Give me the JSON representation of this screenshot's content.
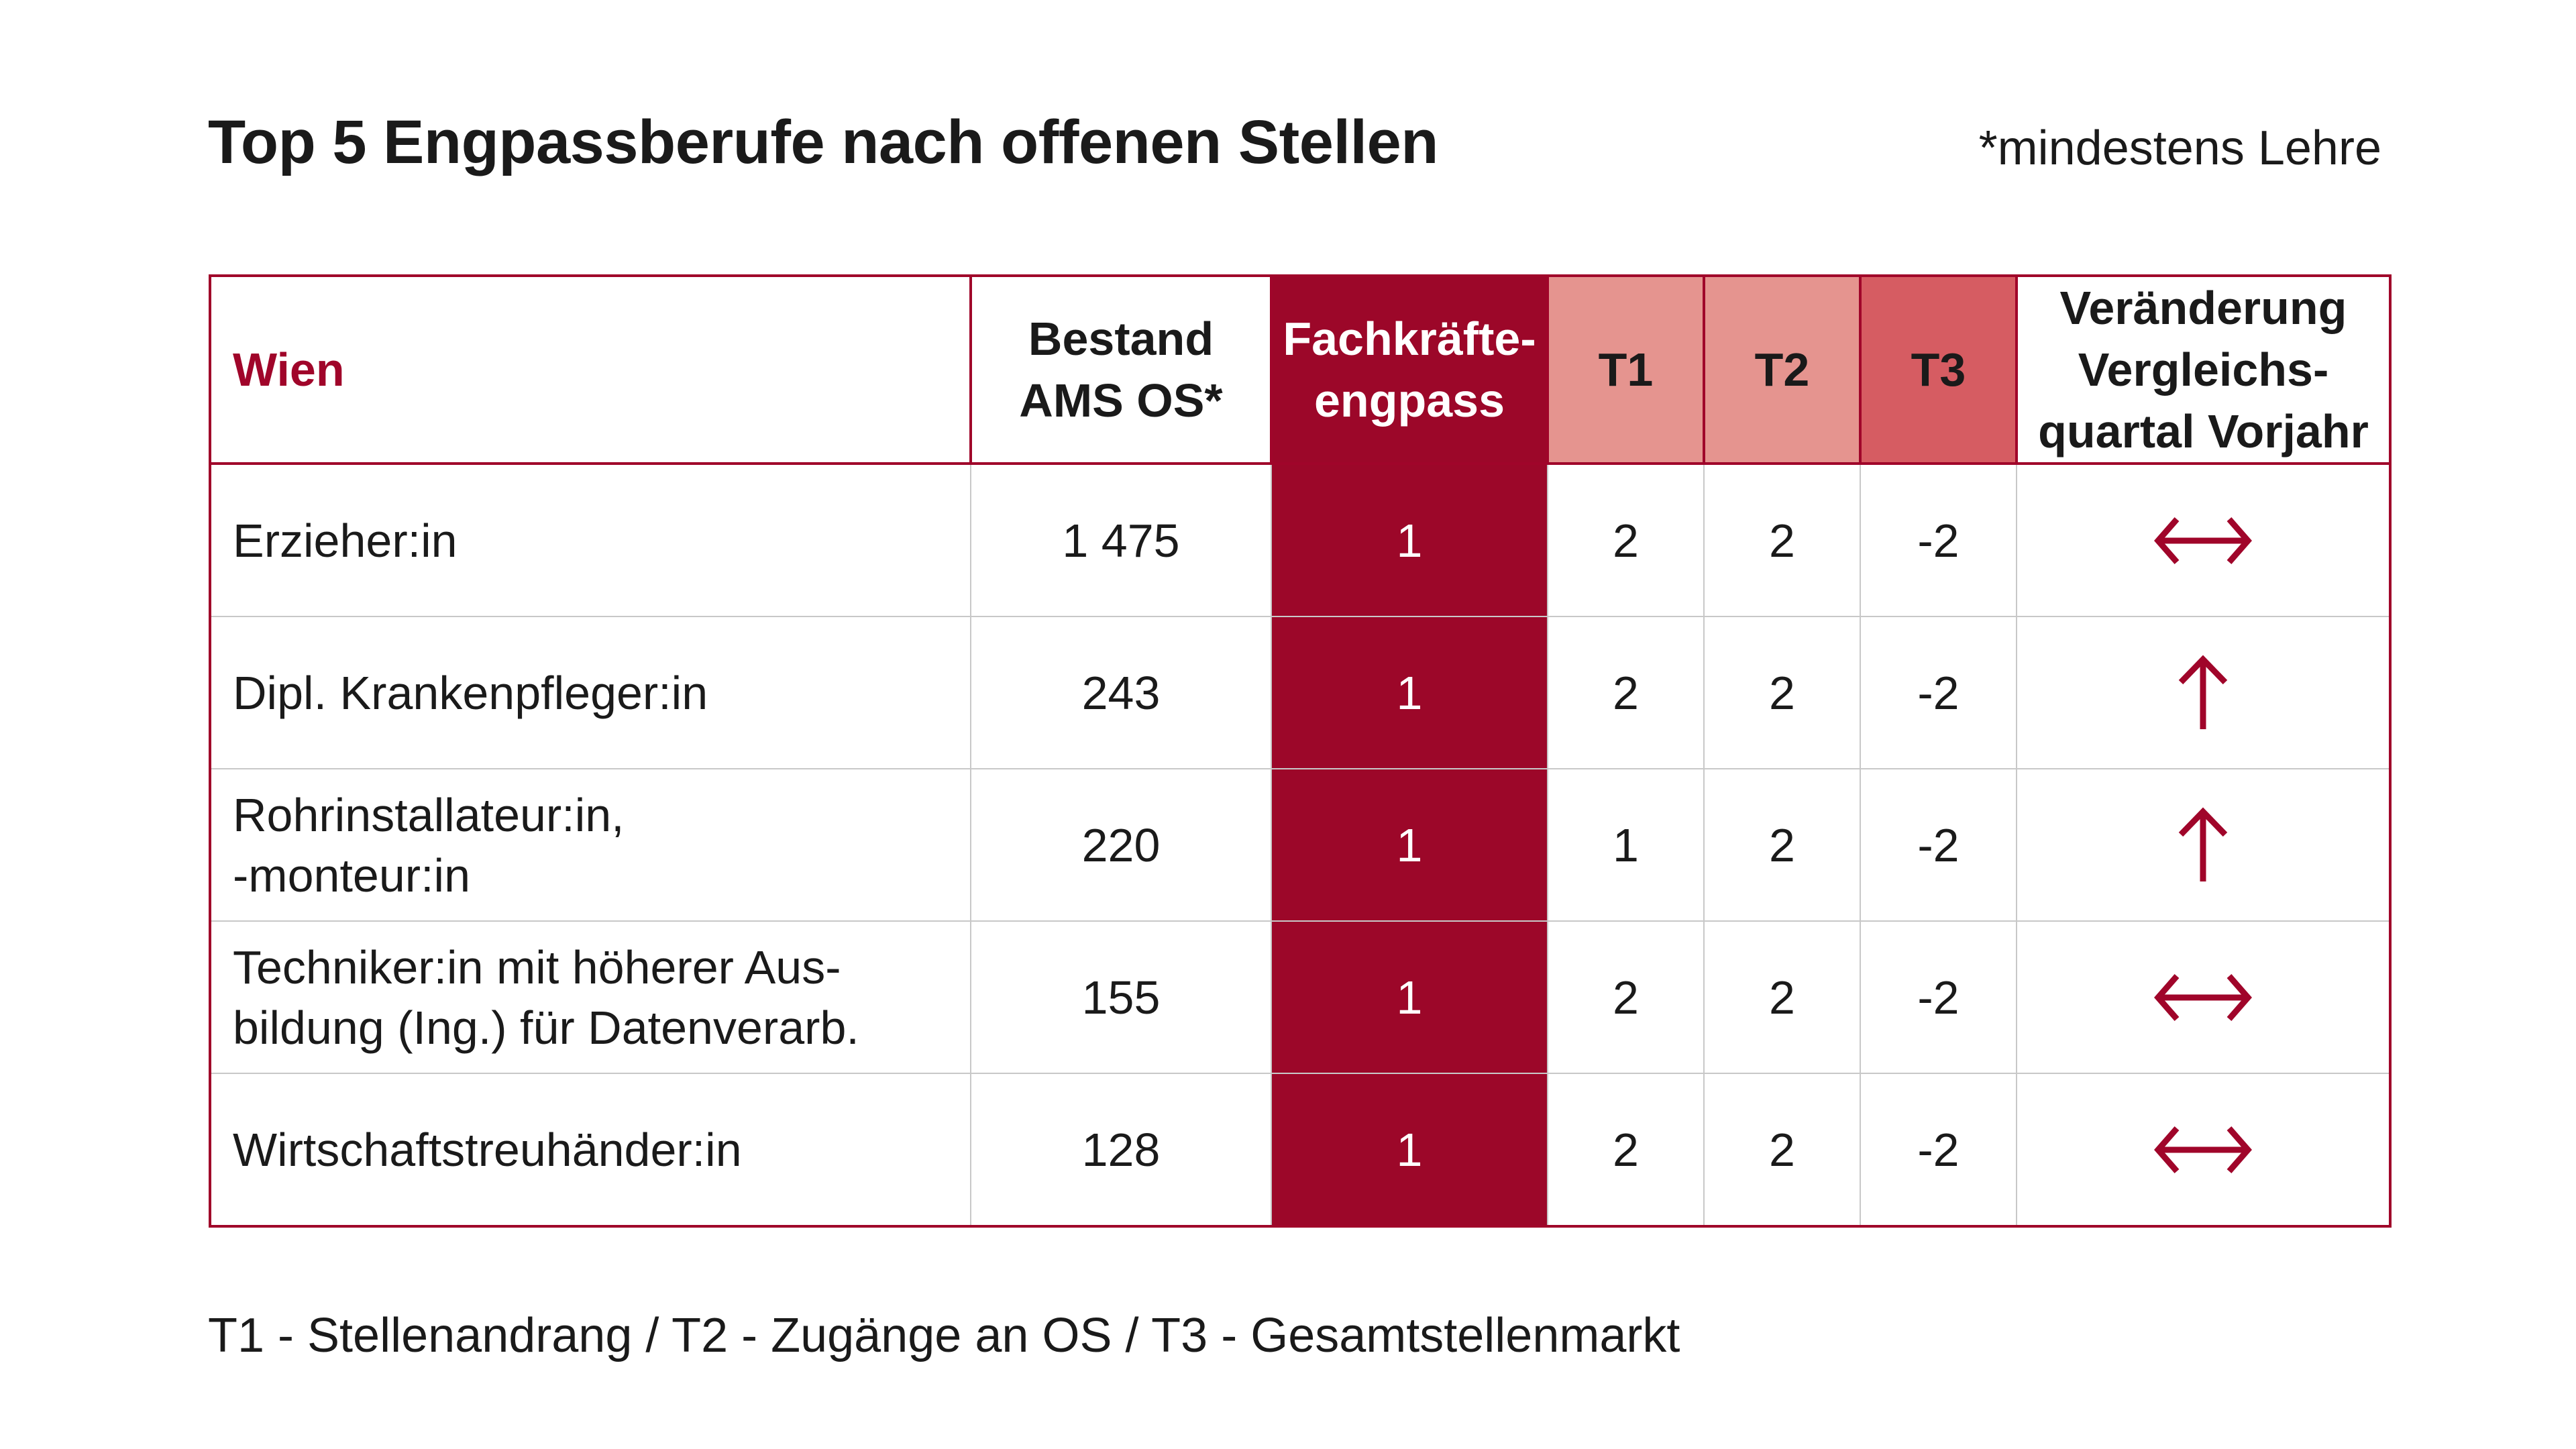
{
  "title": "Top 5 Engpassberufe nach offenen Stellen",
  "note": "*mindestens Lehre",
  "footer": "T1 - Stellenandrang / T2 - Zugänge an OS / T3 - Gesamtstellenmarkt",
  "colors": {
    "accent": "#a0052a",
    "engpass_bg": "#9c0729",
    "t1_t2_header_bg": "#e5948f",
    "t3_header_bg": "#d65c62"
  },
  "chart_data": {
    "type": "table",
    "columns": [
      "Wien",
      "Bestand\nAMS OS*",
      "Fachkräfte-\nengpass",
      "T1",
      "T2",
      "T3",
      "Veränderung\nVergleichs-\nquartal Vorjahr"
    ],
    "rows": [
      {
        "beruf": "Erzieher:in",
        "bestand": "1 475",
        "engpass": "1",
        "t1": "2",
        "t2": "2",
        "t3": "-2",
        "trend": "unchanged-arrow-icon"
      },
      {
        "beruf": "Dipl. Krankenpfleger:in",
        "bestand": "243",
        "engpass": "1",
        "t1": "2",
        "t2": "2",
        "t3": "-2",
        "trend": "up-arrow-icon"
      },
      {
        "beruf": "Rohrinstallateur:in,\n-monteur:in",
        "bestand": "220",
        "engpass": "1",
        "t1": "1",
        "t2": "2",
        "t3": "-2",
        "trend": "up-arrow-icon"
      },
      {
        "beruf": "Techniker:in mit höherer Aus-\nbildung (Ing.) für Datenverarb.",
        "bestand": "155",
        "engpass": "1",
        "t1": "2",
        "t2": "2",
        "t3": "-2",
        "trend": "unchanged-arrow-icon"
      },
      {
        "beruf": "Wirtschaftstreuhänder:in",
        "bestand": "128",
        "engpass": "1",
        "t1": "2",
        "t2": "2",
        "t3": "-2",
        "trend": "unchanged-arrow-icon"
      }
    ]
  }
}
